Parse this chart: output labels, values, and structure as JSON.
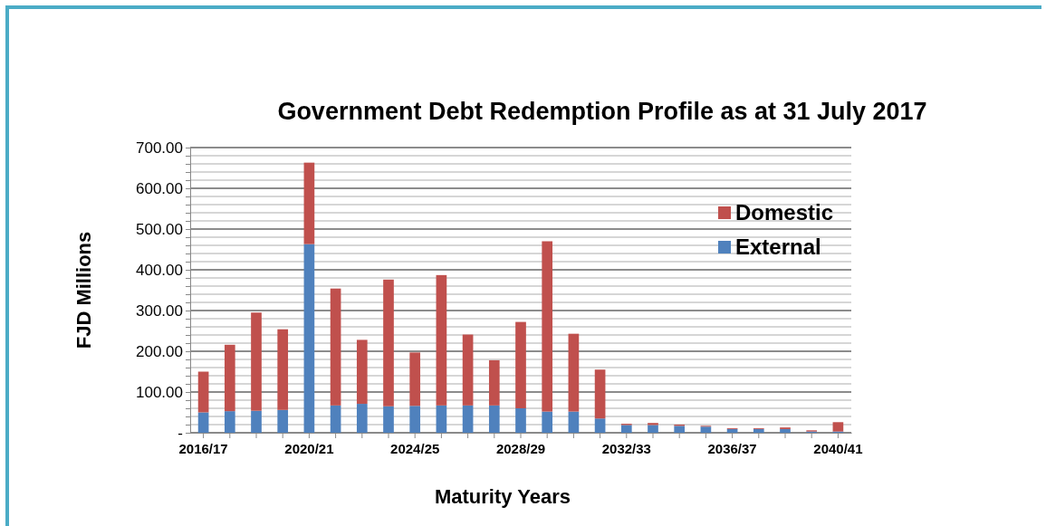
{
  "chart_data": {
    "type": "bar",
    "title": "Government Debt Redemption Profile as at 31 July 2017",
    "xlabel": "Maturity Years",
    "ylabel": "FJD Millions",
    "categories": [
      "2016/17",
      null,
      null,
      null,
      "2020/21",
      null,
      null,
      null,
      "2024/25",
      null,
      null,
      null,
      "2028/29",
      null,
      null,
      null,
      "2032/33",
      null,
      null,
      null,
      "2036/37",
      null,
      null,
      null,
      "2040/41"
    ],
    "series": [
      {
        "name": "External",
        "color": "#4f81bd",
        "values": [
          50,
          53,
          54,
          56,
          463,
          67,
          71,
          65,
          66,
          67,
          67,
          67,
          60,
          52,
          52,
          35,
          19,
          19,
          17,
          15,
          9,
          9,
          9,
          3,
          3
        ]
      },
      {
        "name": "Domestic",
        "color": "#c0504d",
        "values": [
          100,
          163,
          241,
          198,
          200,
          287,
          157,
          311,
          131,
          320,
          174,
          111,
          212,
          418,
          191,
          120,
          3,
          5,
          3,
          2,
          2,
          2,
          4,
          3,
          23
        ]
      }
    ],
    "stacked": true,
    "ylim": [
      0,
      700
    ],
    "yticks": [
      {
        "value": 0,
        "label": "-"
      },
      {
        "value": 20,
        "label": null
      },
      {
        "value": 40,
        "label": null
      },
      {
        "value": 60,
        "label": null
      },
      {
        "value": 80,
        "label": null
      },
      {
        "value": 100,
        "label": "100.00"
      },
      {
        "value": 120,
        "label": null
      },
      {
        "value": 140,
        "label": null
      },
      {
        "value": 160,
        "label": null
      },
      {
        "value": 180,
        "label": null
      },
      {
        "value": 200,
        "label": "200.00"
      },
      {
        "value": 220,
        "label": null
      },
      {
        "value": 240,
        "label": null
      },
      {
        "value": 260,
        "label": null
      },
      {
        "value": 280,
        "label": null
      },
      {
        "value": 300,
        "label": "300.00"
      },
      {
        "value": 320,
        "label": null
      },
      {
        "value": 340,
        "label": null
      },
      {
        "value": 360,
        "label": null
      },
      {
        "value": 380,
        "label": null
      },
      {
        "value": 400,
        "label": "400.00"
      },
      {
        "value": 420,
        "label": null
      },
      {
        "value": 440,
        "label": null
      },
      {
        "value": 460,
        "label": null
      },
      {
        "value": 480,
        "label": null
      },
      {
        "value": 500,
        "label": "500.00"
      },
      {
        "value": 520,
        "label": null
      },
      {
        "value": 540,
        "label": null
      },
      {
        "value": 560,
        "label": null
      },
      {
        "value": 580,
        "label": null
      },
      {
        "value": 600,
        "label": "600.00"
      },
      {
        "value": 620,
        "label": null
      },
      {
        "value": 640,
        "label": null
      },
      {
        "value": 660,
        "label": null
      },
      {
        "value": 680,
        "label": null
      },
      {
        "value": 700,
        "label": "700.00"
      }
    ],
    "grid": true,
    "legend": "top right"
  }
}
